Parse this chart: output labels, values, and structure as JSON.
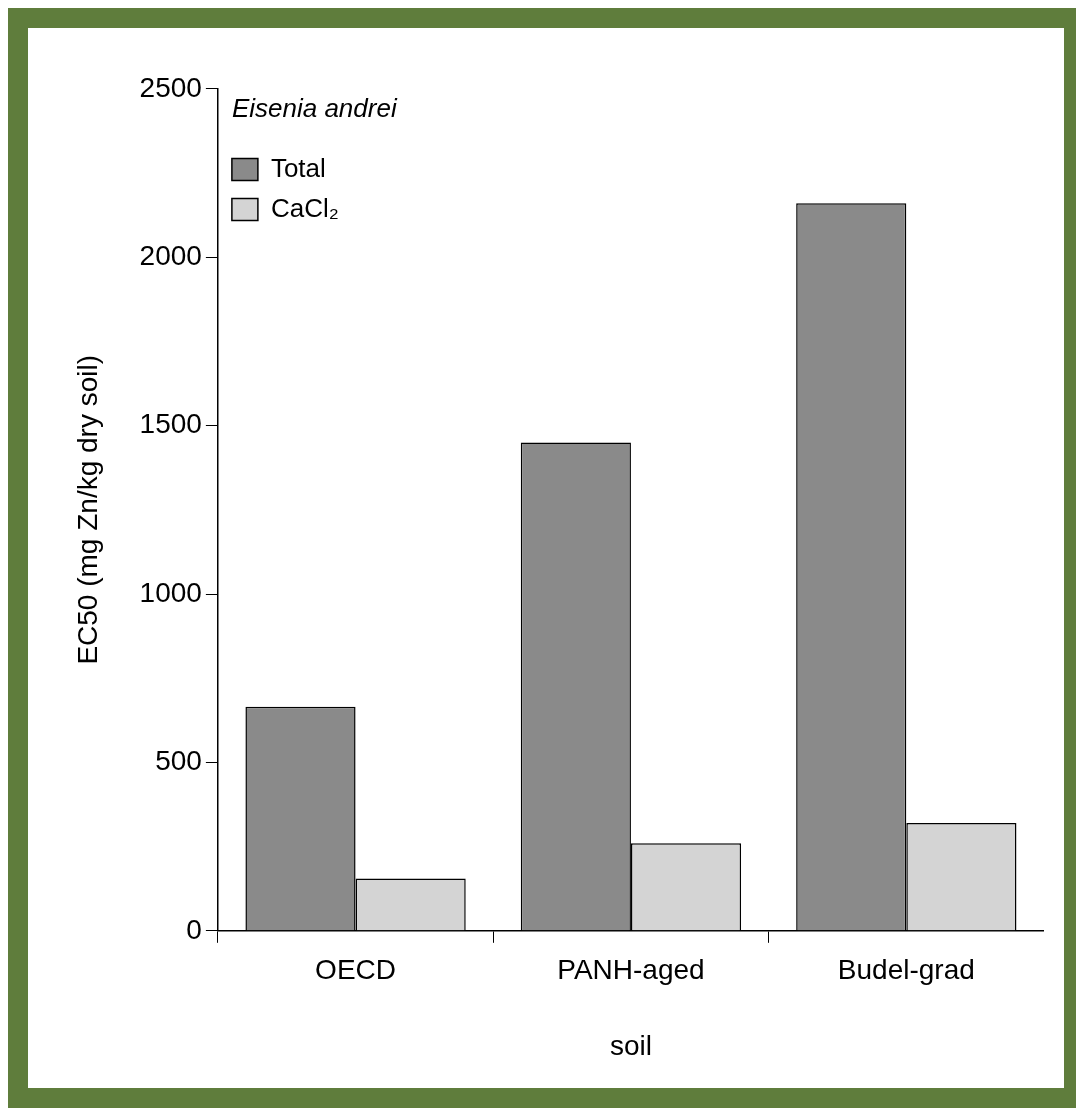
{
  "chart_data": {
    "type": "bar",
    "title": "Eisenia andrei",
    "xlabel": "soil",
    "ylabel": "EC50 (mg Zn/kg dry soil)",
    "categories": [
      "OECD",
      "PANH-aged",
      "Budel-grad"
    ],
    "series": [
      {
        "name": "Total",
        "color": "#8a8a8a",
        "values": [
          665,
          1450,
          2160
        ]
      },
      {
        "name": "CaCl₂",
        "color": "#d4d4d4",
        "values": [
          155,
          260,
          320
        ]
      }
    ],
    "ylim": [
      0,
      2500
    ],
    "yticks": [
      0,
      500,
      1000,
      1500,
      2000,
      2500
    ],
    "grid": false,
    "legend": "top left"
  }
}
